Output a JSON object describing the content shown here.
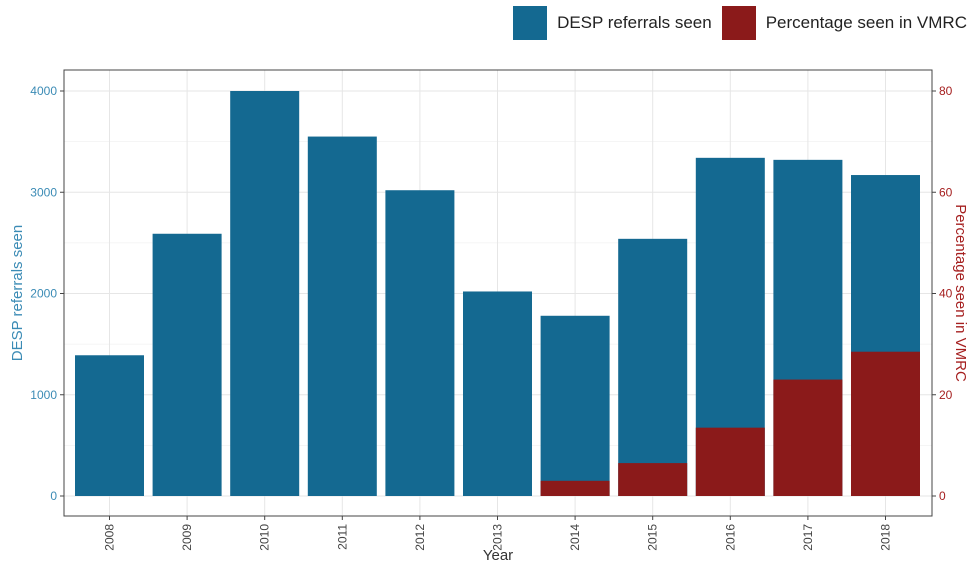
{
  "chart_data": {
    "type": "bar",
    "categories": [
      "2008",
      "2009",
      "2010",
      "2011",
      "2012",
      "2013",
      "2014",
      "2015",
      "2016",
      "2017",
      "2018"
    ],
    "series": [
      {
        "name": "DESP referrals seen",
        "axis": "left",
        "color": "#146991",
        "values": [
          1390,
          2590,
          4000,
          3550,
          3020,
          2020,
          1780,
          2540,
          3340,
          3320,
          3170
        ]
      },
      {
        "name": "Percentage seen in VMRC",
        "axis": "right",
        "color": "#8b1a1a",
        "values": [
          0,
          0,
          0,
          0,
          0,
          0,
          3,
          6.5,
          13.5,
          23,
          28.5
        ]
      }
    ],
    "xlabel": "Year",
    "ylabel": "DESP referrals seen",
    "ylabel_right": "Percentage seen in VMRC",
    "ylim": [
      0,
      4200
    ],
    "ylim_right": [
      0,
      84
    ],
    "yticks": [
      0,
      1000,
      2000,
      3000,
      4000
    ],
    "yticks_right": [
      0,
      20,
      40,
      60,
      80
    ],
    "grid": true,
    "legend_position": "top-right"
  }
}
